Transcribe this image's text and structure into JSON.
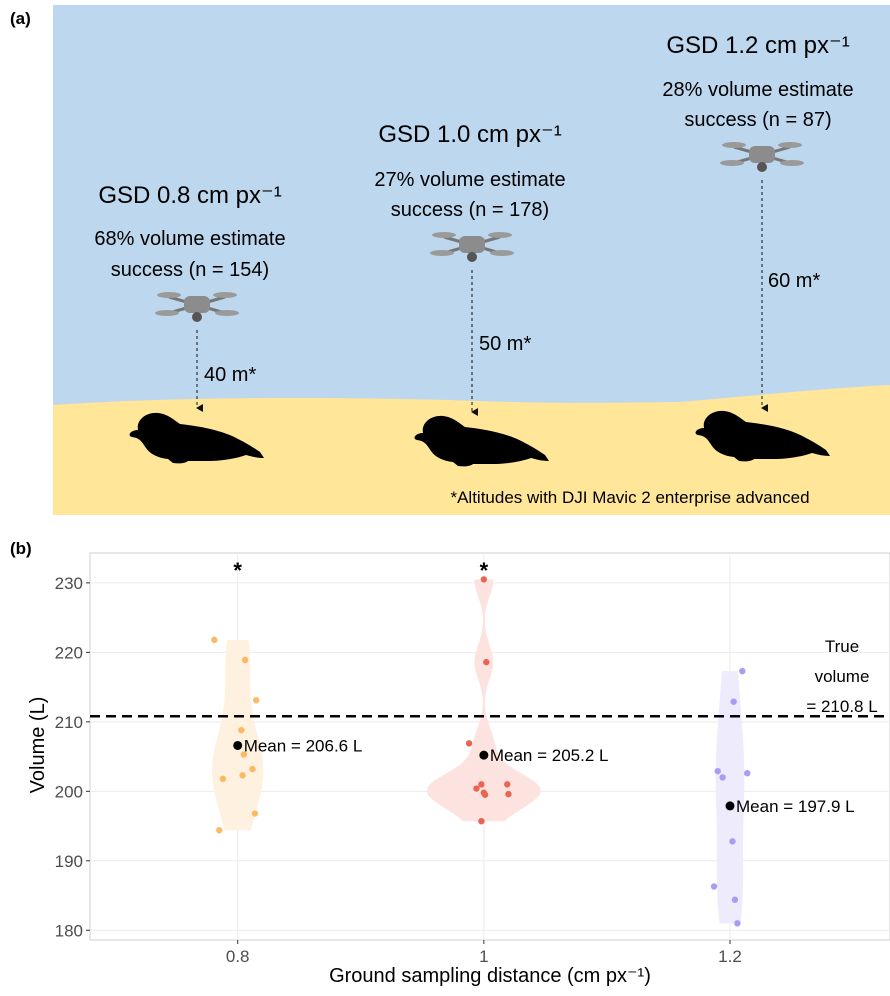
{
  "panel_a": {
    "label": "(a)",
    "scenes": [
      {
        "gsd": "GSD 0.8 cm px⁻¹",
        "success_line1": "68% volume estimate",
        "success_line2": "success (n = 154)",
        "altitude": "40 m*"
      },
      {
        "gsd": "GSD 1.0 cm px⁻¹",
        "success_line1": "27% volume estimate",
        "success_line2": "success (n = 178)",
        "altitude": "50 m*"
      },
      {
        "gsd": "GSD 1.2 cm px⁻¹",
        "success_line1": "28% volume estimate",
        "success_line2": "success (n = 87)",
        "altitude": "60 m*"
      }
    ],
    "footnote": "*Altitudes with DJI Mavic 2 enterprise advanced"
  },
  "chart_data": {
    "type": "violin",
    "panel_label": "(b)",
    "x_label": "Ground sampling distance (cm px⁻¹)",
    "y_label": "Volume (L)",
    "xlim": [
      0.68,
      1.33
    ],
    "xticks": [
      0.8,
      1,
      1.2
    ],
    "ylim": [
      178.6,
      234.3
    ],
    "yticks": [
      180,
      190,
      200,
      210,
      220,
      230
    ],
    "grid": true,
    "series": [
      {
        "color": "#fdb863",
        "violin_color": "#fff1e0",
        "x": [
          0.781,
          0.806,
          0.815,
          0.803,
          0.805,
          0.812,
          0.804,
          0.788,
          0.814,
          0.785
        ],
        "values": [
          221.8,
          218.9,
          213.1,
          208.8,
          205.3,
          203.2,
          202.3,
          201.8,
          196.8,
          194.4
        ],
        "mean": 206.6,
        "mean_label": "Mean = 206.6 L",
        "annotation": "*"
      },
      {
        "color": "#ea6452",
        "violin_color": "#fde3df",
        "x": [
          1.0,
          1.002,
          0.988,
          0.998,
          0.994,
          1.0,
          1.001,
          1.019,
          1.02,
          0.998
        ],
        "values": [
          230.5,
          218.6,
          206.9,
          201.0,
          200.4,
          199.8,
          199.5,
          201.0,
          199.6,
          195.7
        ],
        "mean": 205.2,
        "mean_label": "Mean = 205.2 L",
        "annotation": "*"
      },
      {
        "color": "#a99cf2",
        "violin_color": "#eeebfd",
        "x": [
          1.21,
          1.203,
          1.19,
          1.194,
          1.214,
          1.202,
          1.187,
          1.204,
          1.206
        ],
        "values": [
          217.3,
          212.9,
          202.9,
          202.0,
          202.6,
          192.8,
          186.3,
          184.4,
          181.0
        ],
        "mean": 197.9,
        "mean_label": "Mean = 197.9 L"
      }
    ],
    "reference_line": {
      "value": 210.8,
      "label": [
        "True",
        "volume",
        "= 210.8 L"
      ]
    }
  }
}
